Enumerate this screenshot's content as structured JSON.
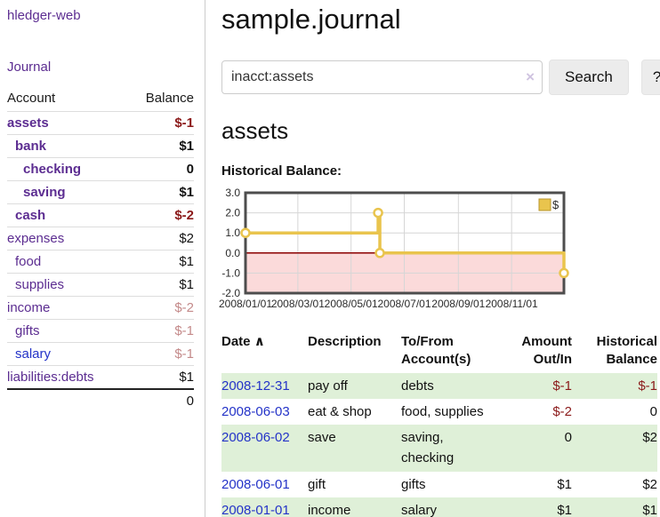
{
  "app": {
    "title": "hledger-web"
  },
  "nav": {
    "journal_label": "Journal"
  },
  "sidebar": {
    "header": {
      "account": "Account",
      "balance": "Balance"
    },
    "accounts": [
      {
        "name": "assets",
        "balance": "$-1",
        "depth": 1,
        "bold": true,
        "balance_color": "negative",
        "link_color": "purple"
      },
      {
        "name": "bank",
        "balance": "$1",
        "depth": 2,
        "bold": true,
        "balance_color": "normal",
        "link_color": "purple"
      },
      {
        "name": "checking",
        "balance": "0",
        "depth": 3,
        "bold": true,
        "balance_color": "normal",
        "link_color": "purple"
      },
      {
        "name": "saving",
        "balance": "$1",
        "depth": 3,
        "bold": true,
        "balance_color": "normal",
        "link_color": "purple"
      },
      {
        "name": "cash",
        "balance": "$-2",
        "depth": 2,
        "bold": true,
        "balance_color": "negative",
        "link_color": "purple"
      },
      {
        "name": "expenses",
        "balance": "$2",
        "depth": 1,
        "bold": false,
        "balance_color": "normal",
        "link_color": "purple"
      },
      {
        "name": "food",
        "balance": "$1",
        "depth": 2,
        "bold": false,
        "balance_color": "normal",
        "link_color": "purple"
      },
      {
        "name": "supplies",
        "balance": "$1",
        "depth": 2,
        "bold": false,
        "balance_color": "normal",
        "link_color": "purple"
      },
      {
        "name": "income",
        "balance": "$-2",
        "depth": 1,
        "bold": false,
        "balance_color": "faded",
        "link_color": "purple"
      },
      {
        "name": "gifts",
        "balance": "$-1",
        "depth": 2,
        "bold": false,
        "balance_color": "faded",
        "link_color": "purple"
      },
      {
        "name": "salary",
        "balance": "$-1",
        "depth": 2,
        "bold": false,
        "balance_color": "faded",
        "link_color": "blue"
      },
      {
        "name": "liabilities:debts",
        "balance": "$1",
        "depth": 1,
        "bold": false,
        "balance_color": "normal",
        "link_color": "purple"
      }
    ],
    "total": "0"
  },
  "header": {
    "title": "sample.journal"
  },
  "search": {
    "value": "inacct:assets",
    "clear_icon": "×",
    "button_label": "Search",
    "help_label": "?"
  },
  "account_page": {
    "heading": "assets",
    "chart_label": "Historical Balance:"
  },
  "chart_data": {
    "type": "line",
    "title": "Historical Balance",
    "step": true,
    "series": [
      {
        "name": "$",
        "points": [
          [
            "2008-01-01",
            1
          ],
          [
            "2008-06-01",
            2
          ],
          [
            "2008-06-03",
            0
          ],
          [
            "2008-12-31",
            -1
          ]
        ]
      }
    ],
    "xlim": [
      "2008-01-01",
      "2008-12-31"
    ],
    "ylim": [
      -2,
      3
    ],
    "x_ticks": [
      "2008/01/01",
      "2008/03/01",
      "2008/05/01",
      "2008/07/01",
      "2008/09/01",
      "2008/11/01"
    ],
    "y_ticks": [
      3.0,
      2.0,
      1.0,
      0.0,
      -1.0,
      -2.0
    ],
    "legend": {
      "position": "top-right",
      "label": "$"
    },
    "line_color": "#e9c44d",
    "legend_border_color": "#b8962e",
    "negative_region_color": "#fbdada",
    "zero_line_color": "#8b0000",
    "grid_color": "#d6d6d6",
    "border_color": "#4d4d4d",
    "grid": true
  },
  "transactions": {
    "columns": {
      "date": "Date",
      "sort_icon": "∧",
      "description": "Description",
      "accounts": "To/From Account(s)",
      "amount": "Amount Out/In",
      "balance": "Historical Balance"
    },
    "rows": [
      {
        "date": "2008-12-31",
        "description": "pay off",
        "accounts": "debts",
        "amount": "$-1",
        "balance": "$-1"
      },
      {
        "date": "2008-06-03",
        "description": "eat & shop",
        "accounts": "food, supplies",
        "amount": "$-2",
        "balance": "0"
      },
      {
        "date": "2008-06-02",
        "description": "save",
        "accounts": "saving, checking",
        "amount": "0",
        "balance": "$2"
      },
      {
        "date": "2008-06-01",
        "description": "gift",
        "accounts": "gifts",
        "amount": "$1",
        "balance": "$2"
      },
      {
        "date": "2008-01-01",
        "description": "income",
        "accounts": "salary",
        "amount": "$1",
        "balance": "$1"
      }
    ]
  },
  "colors": {
    "link_purple": "#5c2d91",
    "link_blue": "#2433c8",
    "negative": "#8b1a1a",
    "faded_negative": "#c48a8a",
    "row_green": "#dff0d8",
    "chart_gold": "#e9c44d"
  }
}
